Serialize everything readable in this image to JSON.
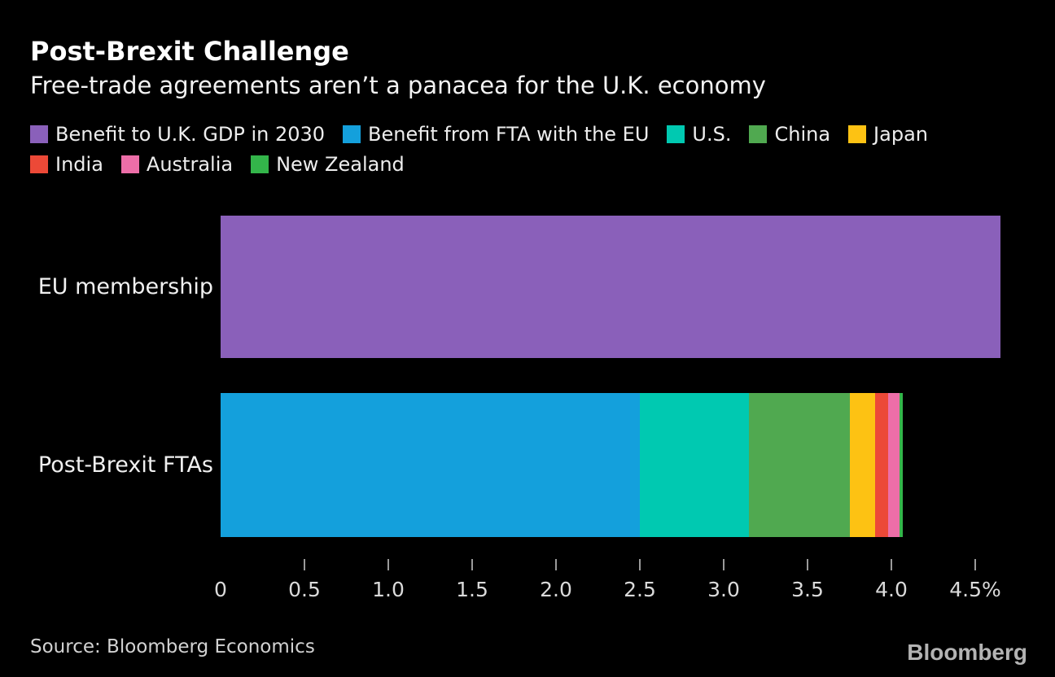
{
  "page": {
    "background_color": "#000000"
  },
  "header": {
    "title": "Post-Brexit Challenge",
    "subtitle": "Free-trade agreements aren’t a panacea for the U.K. economy"
  },
  "legend": {
    "rows": [
      [
        {
          "label": "Benefit to U.K. GDP in 2030",
          "color": "#8a60ba"
        },
        {
          "label": "Benefit from FTA with the EU",
          "color": "#14a0dc"
        },
        {
          "label": "U.S.",
          "color": "#00c9b1"
        },
        {
          "label": "China",
          "color": "#50a950"
        },
        {
          "label": "Japan",
          "color": "#fdc213"
        }
      ],
      [
        {
          "label": "India",
          "color": "#ec4937"
        },
        {
          "label": "Australia",
          "color": "#ed6ea8"
        },
        {
          "label": "New Zealand",
          "color": "#33b54a"
        }
      ]
    ]
  },
  "chart_data": {
    "type": "bar",
    "orientation": "horizontal",
    "stacked": true,
    "title": "Post-Brexit Challenge",
    "subtitle": "Free-trade agreements aren’t a panacea for the U.K. economy",
    "x_unit": "%",
    "xlim": [
      0,
      4.5
    ],
    "grid": false,
    "legend_position": "top",
    "categories": [
      "EU membership",
      "Post-Brexit FTAs"
    ],
    "rows": [
      {
        "category": "EU membership",
        "total": 4.65,
        "segments": [
          {
            "name": "Benefit to U.K. GDP in 2030",
            "value": 4.65,
            "color": "#8a60ba"
          }
        ]
      },
      {
        "category": "Post-Brexit FTAs",
        "total": 4.07,
        "segments": [
          {
            "name": "Benefit from FTA with the EU",
            "value": 2.5,
            "color": "#14a0dc"
          },
          {
            "name": "U.S.",
            "value": 0.65,
            "color": "#00c9b1"
          },
          {
            "name": "China",
            "value": 0.6,
            "color": "#50a950"
          },
          {
            "name": "Japan",
            "value": 0.15,
            "color": "#fdc213"
          },
          {
            "name": "India",
            "value": 0.08,
            "color": "#ec4937"
          },
          {
            "name": "Australia",
            "value": 0.07,
            "color": "#ed6ea8"
          },
          {
            "name": "New Zealand",
            "value": 0.02,
            "color": "#33b54a"
          }
        ]
      }
    ],
    "axis": {
      "ticks": [
        {
          "label": "0",
          "value": 0,
          "mark": false
        },
        {
          "label": "0.5",
          "value": 0.5,
          "mark": true
        },
        {
          "label": "1.0",
          "value": 1.0,
          "mark": true
        },
        {
          "label": "1.5",
          "value": 1.5,
          "mark": true
        },
        {
          "label": "2.0",
          "value": 2.0,
          "mark": true
        },
        {
          "label": "2.5",
          "value": 2.5,
          "mark": true
        },
        {
          "label": "3.0",
          "value": 3.0,
          "mark": true
        },
        {
          "label": "3.5",
          "value": 3.5,
          "mark": true
        },
        {
          "label": "4.0",
          "value": 4.0,
          "mark": true
        },
        {
          "label": "4.5%",
          "value": 4.5,
          "mark": true
        }
      ]
    }
  },
  "footer": {
    "source": "Source: Bloomberg Economics",
    "logo": "Bloomberg"
  }
}
